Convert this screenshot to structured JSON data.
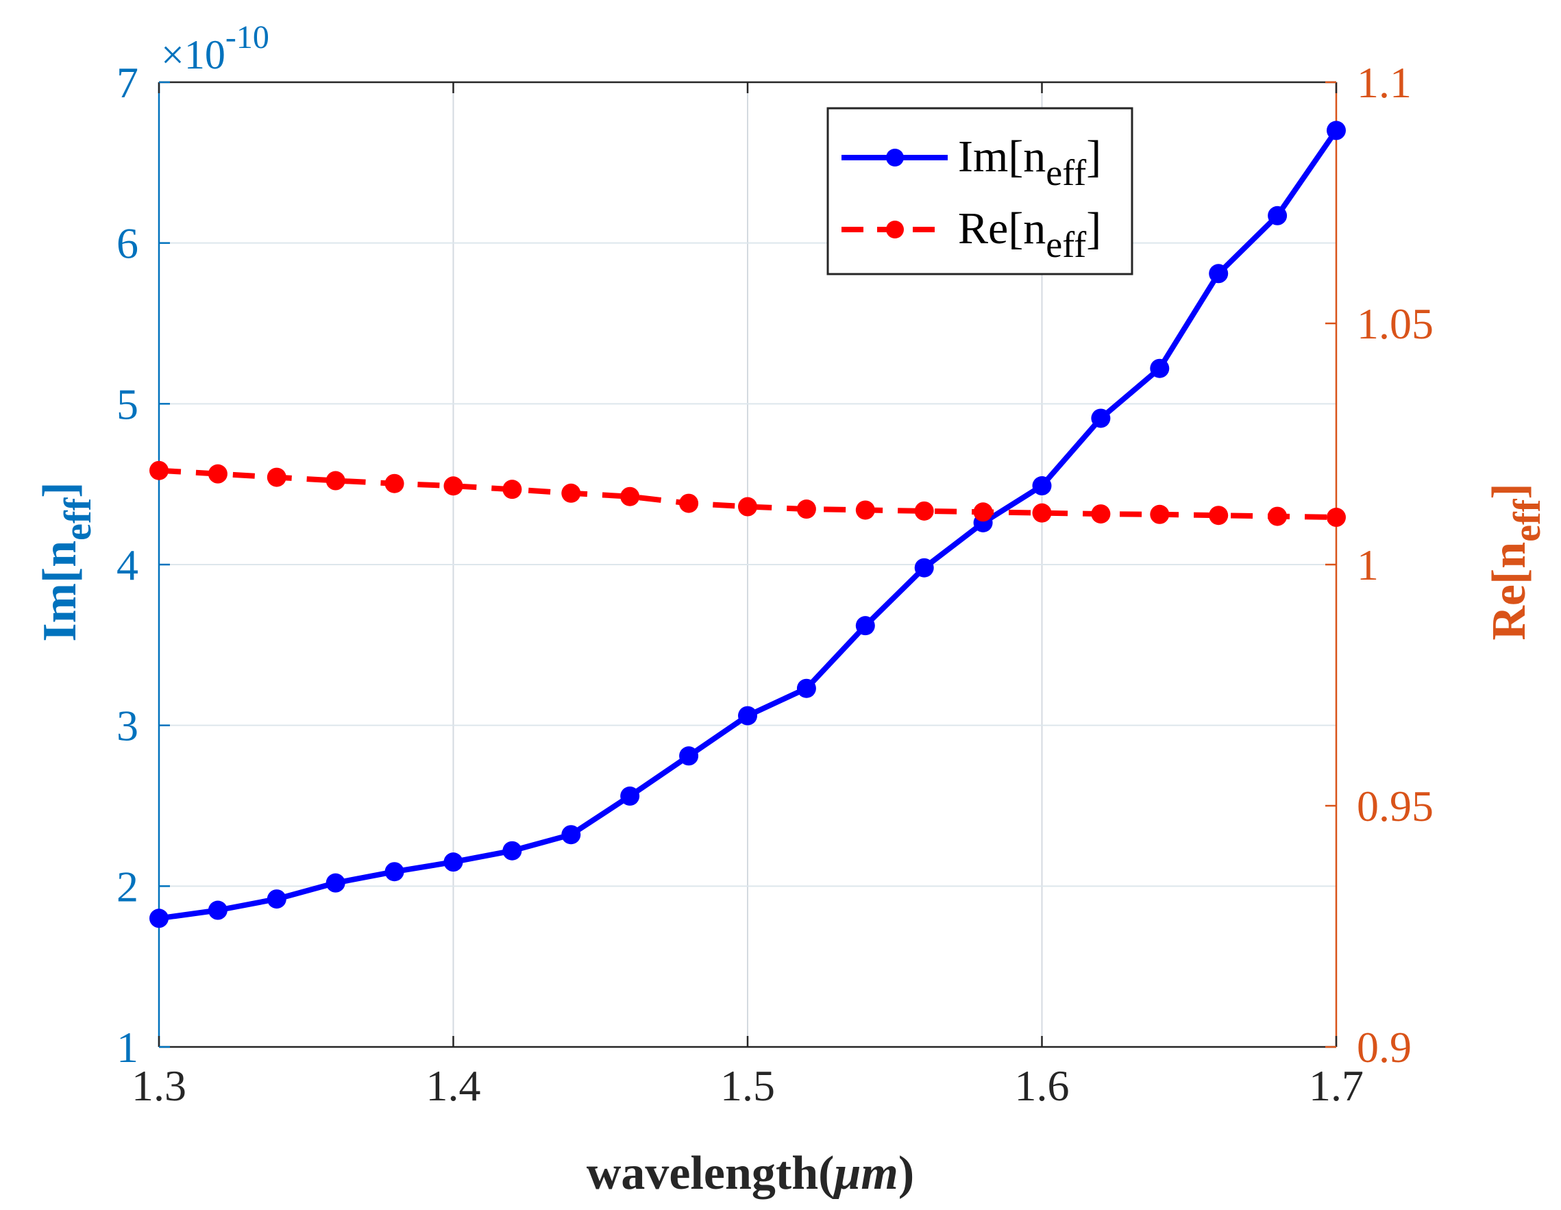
{
  "chart_data": {
    "type": "line",
    "title": "",
    "xlabel": {
      "text": "wavelength(",
      "unit": "μm",
      "close": ")"
    },
    "ylabel_left": {
      "base": "Im[n",
      "sub": "eff",
      "close": "]"
    },
    "ylabel_right": {
      "base": "Re[n",
      "sub": "eff",
      "close": "]"
    },
    "xlim": [
      1.3,
      1.7
    ],
    "ylim_left": [
      1,
      7
    ],
    "ylim_right": [
      0.9,
      1.1
    ],
    "left_axis_multiplier": {
      "base": "×10",
      "exponent": "-10"
    },
    "xticks": [
      "1.3",
      "1.4",
      "1.5",
      "1.6",
      "1.7"
    ],
    "yticks_left": [
      "1",
      "2",
      "3",
      "4",
      "5",
      "6",
      "7"
    ],
    "yticks_right": [
      "0.9",
      "0.95",
      "1",
      "1.05",
      "1.1"
    ],
    "grid": true,
    "legend_position": "top-right",
    "x": [
      1.3,
      1.32,
      1.34,
      1.36,
      1.38,
      1.4,
      1.42,
      1.44,
      1.46,
      1.48,
      1.5,
      1.52,
      1.54,
      1.56,
      1.58,
      1.6,
      1.62,
      1.64,
      1.66,
      1.68,
      1.7
    ],
    "series": [
      {
        "name": "Im[n_eff]",
        "legend_base": "Im[n",
        "legend_sub": "eff",
        "legend_close": "]",
        "axis": "left",
        "style": "solid",
        "color": "#0000FF",
        "values": [
          1.8,
          1.85,
          1.92,
          2.02,
          2.09,
          2.15,
          2.22,
          2.32,
          2.56,
          2.81,
          3.06,
          3.23,
          3.62,
          3.98,
          4.26,
          4.49,
          4.91,
          5.22,
          5.81,
          6.17,
          6.7
        ]
      },
      {
        "name": "Re[n_eff]",
        "legend_base": "Re[n",
        "legend_sub": "eff",
        "legend_close": "]",
        "axis": "right",
        "style": "dashed",
        "color": "#FF0000",
        "values": [
          1.0195,
          1.0188,
          1.0181,
          1.0174,
          1.0168,
          1.0163,
          1.0156,
          1.0148,
          1.0141,
          1.0127,
          1.012,
          1.0115,
          1.0113,
          1.0111,
          1.0109,
          1.0107,
          1.0105,
          1.0104,
          1.0102,
          1.01,
          1.0098
        ]
      }
    ]
  },
  "colors": {
    "left_axis": "#0072BD",
    "right_axis": "#D95319",
    "text": "#262626",
    "grid": "#DDE6EC"
  }
}
